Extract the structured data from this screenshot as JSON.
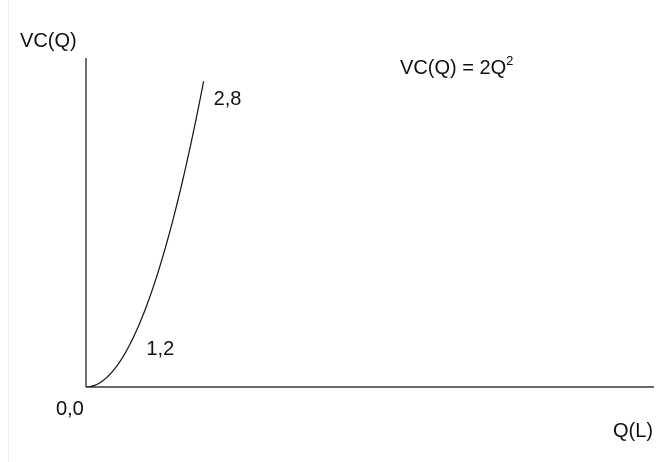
{
  "chart_data": {
    "type": "line",
    "ylabel": "VC(Q)",
    "xlabel": "Q(L)",
    "equation": {
      "base": "VC(Q) = 2Q",
      "exponent": "2"
    },
    "origin_label": "0,0",
    "series": [
      {
        "x": [
          0,
          0.4,
          0.8,
          1.2,
          1.6,
          2.0,
          2.4,
          2.8
        ],
        "y": [
          0,
          0.32,
          1.28,
          2.88,
          5.12,
          8.0,
          11.52,
          15.68
        ]
      }
    ],
    "point_labels": [
      {
        "x": 1.2,
        "text": "1,2"
      },
      {
        "x": 2.8,
        "text": "2,8"
      }
    ],
    "xlim": [
      0,
      16.9
    ],
    "ylim": [
      0,
      16.9
    ],
    "grid": false,
    "colors": {
      "axis": "#111111",
      "curve": "#111111"
    }
  }
}
